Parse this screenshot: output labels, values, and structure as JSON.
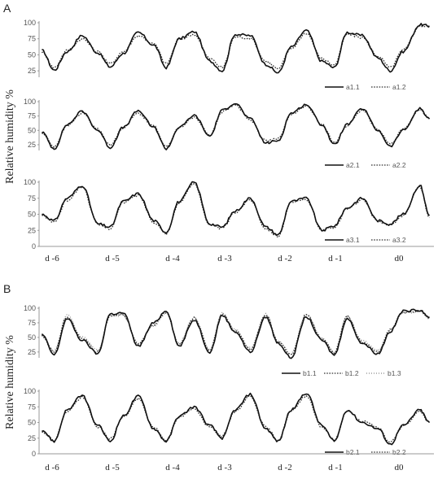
{
  "figure": {
    "panels": [
      {
        "label": "A",
        "ylabel": "Relative humidity %",
        "day_labels": [
          "d -6",
          "d -5",
          "d -4",
          "d -3",
          "d -2",
          "d -1",
          "d0"
        ]
      },
      {
        "label": "B",
        "ylabel": "Relative humidity %",
        "day_labels": [
          "d -6",
          "d -5",
          "d -4",
          "d -3",
          "d -2",
          "d -1",
          "d0"
        ]
      }
    ]
  },
  "chart_data": [
    {
      "type": "line",
      "panel": "A",
      "x": [
        -6.5,
        -6.28,
        -6.05,
        -5.78,
        -5.5,
        -5.28,
        -5.05,
        -4.78,
        -4.5,
        -4.28,
        -4.05,
        -3.78,
        -3.5,
        -3.28,
        -3.05,
        -2.78,
        -2.5,
        -2.28,
        -2.05,
        -1.78,
        -1.5,
        -1.28,
        -1.05,
        -0.78,
        -0.5,
        -0.28,
        -0.05,
        0.25,
        0.42
      ],
      "yticks": [
        25,
        50,
        75,
        100
      ],
      "ylim": [
        15,
        100
      ],
      "series": [
        {
          "name": "a1.1",
          "style": "solid",
          "values": [
            57,
            26,
            55,
            80,
            53,
            31,
            52,
            85,
            65,
            30,
            75,
            86,
            40,
            25,
            82,
            80,
            35,
            22,
            62,
            88,
            40,
            30,
            85,
            80,
            45,
            25,
            55,
            97,
            95
          ]
        },
        {
          "name": "a1.2",
          "style": "dotted",
          "values": [
            55,
            30,
            57,
            75,
            55,
            36,
            55,
            80,
            67,
            36,
            74,
            82,
            44,
            30,
            78,
            76,
            40,
            28,
            60,
            84,
            44,
            34,
            82,
            77,
            48,
            30,
            57,
            95,
            94
          ]
        }
      ]
    },
    {
      "type": "line",
      "panel": "A",
      "x": [
        -6.5,
        -6.28,
        -6.05,
        -5.78,
        -5.5,
        -5.28,
        -5.05,
        -4.78,
        -4.5,
        -4.28,
        -4.05,
        -3.78,
        -3.5,
        -3.28,
        -3.05,
        -2.78,
        -2.5,
        -2.28,
        -2.05,
        -1.78,
        -1.5,
        -1.28,
        -1.05,
        -0.78,
        -0.5,
        -0.28,
        -0.05,
        0.25,
        0.42
      ],
      "yticks": [
        25,
        50,
        75,
        100
      ],
      "ylim": [
        15,
        100
      ],
      "series": [
        {
          "name": "a2.1",
          "style": "solid",
          "values": [
            47,
            18,
            60,
            83,
            50,
            20,
            55,
            84,
            55,
            18,
            55,
            76,
            40,
            85,
            97,
            70,
            28,
            32,
            80,
            95,
            60,
            25,
            60,
            88,
            50,
            22,
            50,
            88,
            70
          ]
        },
        {
          "name": "a2.2",
          "style": "dotted",
          "values": [
            45,
            22,
            58,
            80,
            52,
            24,
            55,
            80,
            57,
            22,
            54,
            73,
            42,
            82,
            95,
            68,
            32,
            35,
            78,
            92,
            62,
            28,
            58,
            85,
            52,
            26,
            52,
            86,
            70
          ]
        }
      ]
    },
    {
      "type": "line",
      "panel": "A",
      "x": [
        -6.5,
        -6.28,
        -6.05,
        -5.78,
        -5.5,
        -5.28,
        -5.05,
        -4.78,
        -4.5,
        -4.28,
        -4.05,
        -3.78,
        -3.5,
        -3.28,
        -3.05,
        -2.78,
        -2.5,
        -2.28,
        -2.05,
        -1.78,
        -1.5,
        -1.28,
        -1.05,
        -0.78,
        -0.5,
        -0.28,
        -0.05,
        0.25,
        0.42
      ],
      "yticks": [
        0,
        25,
        50,
        75,
        100
      ],
      "ylim": [
        0,
        100
      ],
      "series": [
        {
          "name": "a3.1",
          "style": "solid",
          "values": [
            50,
            40,
            75,
            95,
            35,
            30,
            70,
            82,
            40,
            22,
            70,
            100,
            35,
            30,
            55,
            75,
            30,
            18,
            70,
            75,
            25,
            32,
            60,
            75,
            40,
            35,
            50,
            95,
            48
          ]
        },
        {
          "name": "a3.2",
          "style": "dotted",
          "values": [
            48,
            38,
            72,
            93,
            34,
            28,
            68,
            80,
            38,
            20,
            68,
            98,
            33,
            28,
            53,
            73,
            28,
            16,
            68,
            73,
            26,
            30,
            58,
            73,
            38,
            34,
            48,
            93,
            45
          ]
        }
      ]
    },
    {
      "type": "line",
      "panel": "B",
      "x": [
        -6.5,
        -6.28,
        -6.05,
        -5.78,
        -5.5,
        -5.28,
        -5.05,
        -4.78,
        -4.5,
        -4.28,
        -4.05,
        -3.78,
        -3.5,
        -3.28,
        -3.05,
        -2.78,
        -2.5,
        -2.28,
        -2.05,
        -1.78,
        -1.5,
        -1.28,
        -1.05,
        -0.78,
        -0.5,
        -0.28,
        -0.05,
        0.25,
        0.42
      ],
      "yticks": [
        25,
        50,
        75,
        100
      ],
      "ylim": [
        15,
        100
      ],
      "series": [
        {
          "name": "b1.1",
          "style": "solid",
          "values": [
            55,
            20,
            82,
            45,
            22,
            90,
            92,
            35,
            75,
            96,
            35,
            80,
            25,
            88,
            60,
            25,
            85,
            40,
            15,
            85,
            45,
            20,
            82,
            40,
            22,
            60,
            95,
            97,
            85
          ]
        },
        {
          "name": "b1.2",
          "style": "dotted",
          "values": [
            52,
            25,
            86,
            48,
            25,
            88,
            90,
            38,
            72,
            93,
            38,
            83,
            28,
            90,
            62,
            30,
            88,
            42,
            20,
            88,
            48,
            24,
            86,
            42,
            26,
            62,
            93,
            96,
            84
          ]
        },
        {
          "name": "b1.3",
          "style": "dotted-light",
          "values": [
            54,
            28,
            88,
            50,
            28,
            86,
            88,
            40,
            70,
            91,
            40,
            85,
            30,
            92,
            64,
            32,
            90,
            44,
            22,
            90,
            50,
            26,
            88,
            44,
            28,
            64,
            92,
            95,
            83
          ]
        }
      ]
    },
    {
      "type": "line",
      "panel": "B",
      "x": [
        -6.5,
        -6.28,
        -6.05,
        -5.78,
        -5.5,
        -5.28,
        -5.05,
        -4.78,
        -4.5,
        -4.28,
        -4.05,
        -3.78,
        -3.5,
        -3.28,
        -3.05,
        -2.78,
        -2.5,
        -2.28,
        -2.05,
        -1.78,
        -1.5,
        -1.28,
        -1.05,
        -0.78,
        -0.5,
        -0.28,
        -0.05,
        0.25,
        0.42
      ],
      "yticks": [
        0,
        25,
        50,
        75,
        100
      ],
      "ylim": [
        0,
        100
      ],
      "series": [
        {
          "name": "b2.1",
          "style": "solid",
          "values": [
            38,
            20,
            70,
            93,
            45,
            20,
            60,
            92,
            40,
            20,
            60,
            75,
            45,
            25,
            70,
            95,
            40,
            20,
            70,
            97,
            45,
            20,
            70,
            50,
            40,
            15,
            45,
            70,
            50
          ]
        },
        {
          "name": "b2.2",
          "style": "dotted",
          "values": [
            36,
            22,
            68,
            90,
            43,
            24,
            58,
            88,
            42,
            22,
            58,
            72,
            43,
            28,
            68,
            92,
            42,
            22,
            68,
            93,
            43,
            22,
            68,
            52,
            42,
            18,
            44,
            68,
            50
          ]
        }
      ]
    }
  ]
}
